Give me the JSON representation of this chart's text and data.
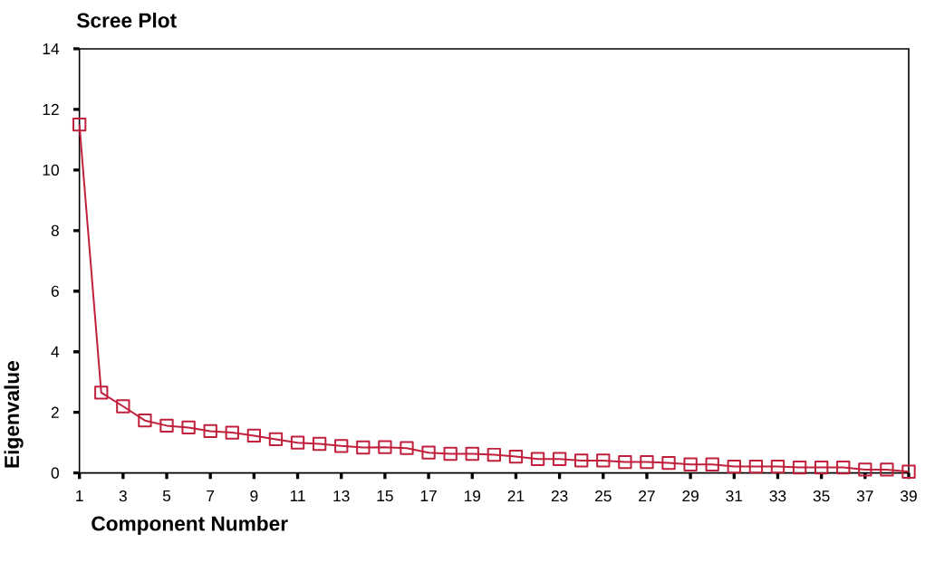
{
  "chart_data": {
    "type": "line",
    "title": "Scree Plot",
    "xlabel": "Component Number",
    "ylabel": "Eigenvalue",
    "x": [
      1,
      2,
      3,
      4,
      5,
      6,
      7,
      8,
      9,
      10,
      11,
      12,
      13,
      14,
      15,
      16,
      17,
      18,
      19,
      20,
      21,
      22,
      23,
      24,
      25,
      26,
      27,
      28,
      29,
      30,
      31,
      32,
      33,
      34,
      35,
      36,
      37,
      38,
      39
    ],
    "values": [
      11.5,
      2.65,
      2.2,
      1.73,
      1.56,
      1.5,
      1.38,
      1.33,
      1.23,
      1.11,
      1.0,
      0.96,
      0.89,
      0.84,
      0.85,
      0.82,
      0.67,
      0.63,
      0.63,
      0.6,
      0.54,
      0.46,
      0.46,
      0.41,
      0.41,
      0.36,
      0.36,
      0.33,
      0.28,
      0.28,
      0.21,
      0.21,
      0.21,
      0.18,
      0.18,
      0.18,
      0.11,
      0.11,
      0.04
    ],
    "color": "#c0203c",
    "marker": "square",
    "line_style": "solid",
    "grid": false,
    "xlim": [
      1,
      39
    ],
    "ylim": [
      0,
      14
    ],
    "xticks": [
      1,
      3,
      5,
      7,
      9,
      11,
      13,
      15,
      17,
      19,
      21,
      23,
      25,
      27,
      29,
      31,
      33,
      35,
      37,
      39
    ],
    "yticks": [
      0,
      2,
      4,
      6,
      8,
      10,
      12,
      14
    ]
  }
}
